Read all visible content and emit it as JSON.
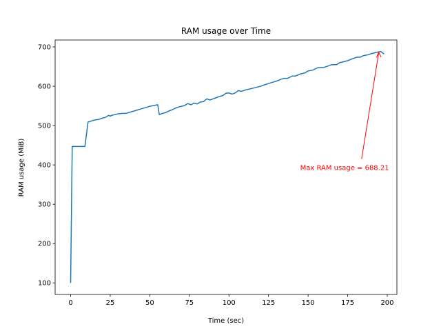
{
  "chart_data": {
    "type": "line",
    "title": "RAM usage over Time",
    "xlabel": "Time (sec)",
    "ylabel": "RAM usage (MiB)",
    "xlim": [
      -9.8,
      206.1
    ],
    "ylim": [
      70.6,
      717.6
    ],
    "xticks": [
      0,
      25,
      50,
      75,
      100,
      125,
      150,
      175,
      200
    ],
    "yticks": [
      100,
      200,
      300,
      400,
      500,
      600,
      700
    ],
    "grid": false,
    "line_color": "#1f77b4",
    "series": [
      {
        "x": [
          0,
          1,
          9,
          11,
          15,
          18,
          20,
          22,
          24,
          25,
          26,
          27,
          30,
          33,
          35,
          40,
          45,
          50,
          55,
          56,
          58,
          60,
          62,
          64,
          66,
          68,
          70,
          72,
          74,
          76,
          78,
          80,
          82,
          84,
          86,
          88,
          90,
          92,
          94,
          96,
          98,
          100,
          102,
          104,
          106,
          108,
          110,
          115,
          120,
          125,
          130,
          133,
          135,
          137,
          140,
          142,
          145,
          148,
          150,
          153,
          156,
          160,
          163,
          165,
          168,
          170,
          172,
          175,
          178,
          181,
          183,
          185,
          188,
          190,
          192,
          194,
          196,
          198
        ],
        "y": [
          100,
          447,
          447,
          509,
          514,
          516,
          519,
          521,
          526,
          524,
          526,
          527,
          530,
          531,
          531,
          537,
          543,
          549,
          553,
          528,
          531,
          533,
          537,
          540,
          544,
          547,
          549,
          551,
          556,
          553,
          557,
          555,
          560,
          561,
          568,
          565,
          568,
          571,
          574,
          576,
          582,
          583,
          580,
          583,
          589,
          587,
          590,
          595,
          600,
          607,
          613,
          618,
          620,
          620,
          626,
          626,
          631,
          634,
          639,
          641,
          647,
          648,
          652,
          655,
          655,
          660,
          662,
          665,
          670,
          674,
          674,
          678,
          680,
          683,
          685,
          687,
          688.21,
          682
        ]
      }
    ],
    "annotation": {
      "text": "Max RAM usage = 688.21",
      "color": "#ff0000",
      "point": [
        194.6,
        688.21
      ],
      "text_anchor_data": [
        145,
        387
      ]
    }
  }
}
